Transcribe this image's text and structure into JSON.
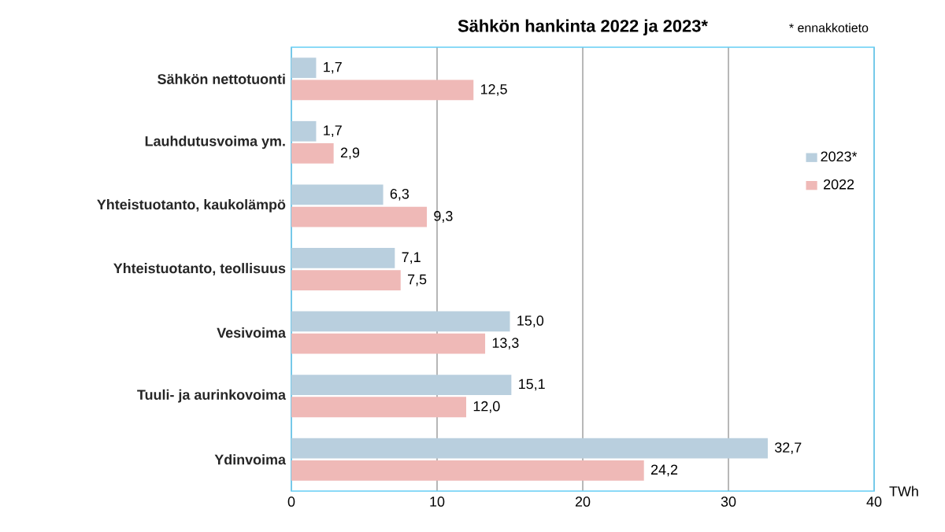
{
  "chart_data": {
    "type": "bar",
    "orientation": "horizontal",
    "title": "Sähkön hankinta 2022 ja 2023*",
    "xlabel": "TWh",
    "annotations": [
      "* ennakkotieto"
    ],
    "categories": [
      "Sähkön nettotuonti",
      "Lauhdutusvoima ym.",
      "Yhteistuotanto, kaukolämpö",
      "Yhteistuotanto, teollisuus",
      "Vesivoima",
      "Tuuli- ja aurinkovoima",
      "Ydinvoima"
    ],
    "series": [
      {
        "name": "2023*",
        "color": "#b9cfde",
        "values": [
          1.7,
          1.7,
          6.3,
          7.1,
          15.0,
          15.1,
          32.7
        ],
        "value_labels": [
          "1,7",
          "1,7",
          "6,3",
          "7,1",
          "15,0",
          "15,1",
          "32,7"
        ]
      },
      {
        "name": "2022",
        "color": "#efb9b7",
        "values": [
          12.5,
          2.9,
          9.3,
          7.5,
          13.3,
          12.0,
          24.2
        ],
        "value_labels": [
          "12,5",
          "2,9",
          "9,3",
          "7,5",
          "13,3",
          "12,0",
          "24,2"
        ]
      }
    ],
    "xlim": [
      0,
      40
    ],
    "xticks": [
      0,
      10,
      20,
      30,
      40
    ],
    "grid": "x",
    "legend": "right"
  }
}
